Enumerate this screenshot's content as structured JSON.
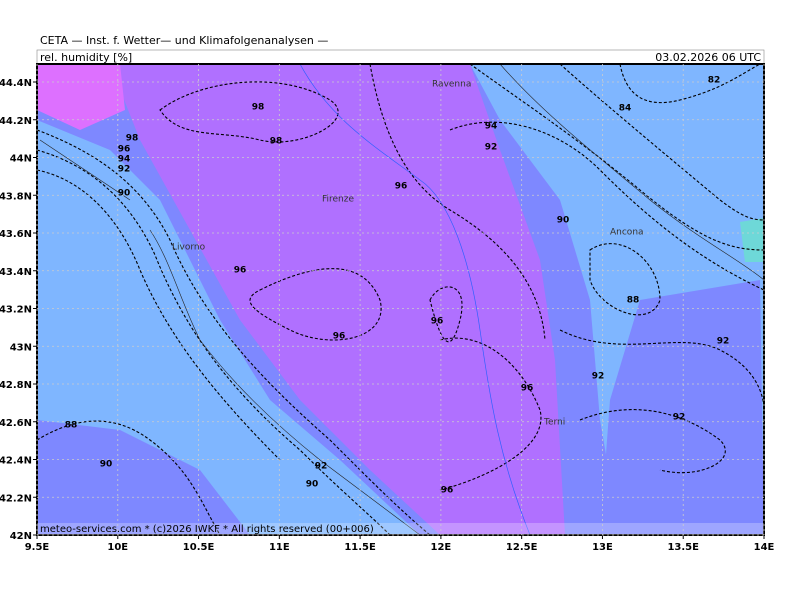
{
  "header": {
    "institute": "CETA — Inst. f. Wetter— und Klimafolgenanalysen —",
    "parameter": "rel. humidity [%]",
    "valid_time": "03.02.2026 06 UTC"
  },
  "footer": "meteo-services.com * (c)2026 IWKF * All rights reserved (00+006)",
  "lon_ticks": [
    {
      "value": 9.5,
      "label": "9.5E"
    },
    {
      "value": 10,
      "label": "10E"
    },
    {
      "value": 10.5,
      "label": "10.5E"
    },
    {
      "value": 11,
      "label": "11E"
    },
    {
      "value": 11.5,
      "label": "11.5E"
    },
    {
      "value": 12,
      "label": "12E"
    },
    {
      "value": 12.5,
      "label": "12.5E"
    },
    {
      "value": 13,
      "label": "13E"
    },
    {
      "value": 13.5,
      "label": "13.5E"
    },
    {
      "value": 14,
      "label": "14E"
    }
  ],
  "lat_ticks": [
    {
      "value": 42,
      "label": "42N"
    },
    {
      "value": 42.2,
      "label": "42.2N"
    },
    {
      "value": 42.4,
      "label": "42.4N"
    },
    {
      "value": 42.6,
      "label": "42.6N"
    },
    {
      "value": 42.8,
      "label": "42.8N"
    },
    {
      "value": 43,
      "label": "43N"
    },
    {
      "value": 43.2,
      "label": "43.2N"
    },
    {
      "value": 43.4,
      "label": "43.4N"
    },
    {
      "value": 43.6,
      "label": "43.6N"
    },
    {
      "value": 43.8,
      "label": "43.8N"
    },
    {
      "value": 44,
      "label": "44N"
    },
    {
      "value": 44.2,
      "label": "44.2N"
    },
    {
      "value": 44.4,
      "label": "44.4N"
    }
  ],
  "places": [
    "Ravenna",
    "Firenze",
    "Livorno",
    "Ancona",
    "Terni"
  ],
  "contour_labels": [
    98,
    98,
    98,
    96,
    94,
    92,
    90,
    96,
    96,
    96,
    96,
    96,
    96,
    94,
    92,
    90,
    88,
    84,
    82,
    92,
    92,
    92,
    90,
    88,
    92,
    90
  ]
}
